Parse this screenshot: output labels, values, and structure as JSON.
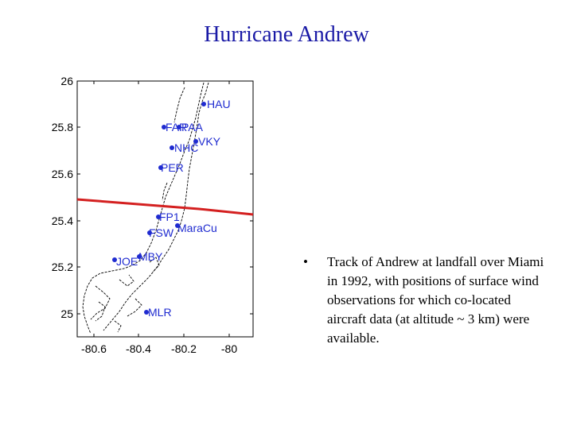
{
  "slide": {
    "title": "Hurricane Andrew",
    "bullet_symbol": "•",
    "bullet_text": "Track of Andrew at landfall over Miami in 1992, with positions of surface wind observations for which co-located aircraft data (at altitude ~ 3 km) were available."
  },
  "map": {
    "y_ticks": [
      "26",
      "25.8",
      "25.6",
      "25.4",
      "25.2",
      "25"
    ],
    "x_ticks": [
      "-80.6",
      "-80.4",
      "-80.2",
      "-80"
    ],
    "colors": {
      "track": "#d42020",
      "stations": "#1f2bd0",
      "coast": "#000000"
    },
    "stations": [
      {
        "label": "HAU",
        "lon": -80.11,
        "lat": 25.9
      },
      {
        "label": "FAR",
        "lon": -80.33,
        "lat": 25.8
      },
      {
        "label": "PAA",
        "lon": -80.25,
        "lat": 25.8
      },
      {
        "label": "VKY",
        "lon": -80.16,
        "lat": 25.74
      },
      {
        "label": "NHC",
        "lon": -80.28,
        "lat": 25.72
      },
      {
        "label": "PER",
        "lon": -80.34,
        "lat": 25.63
      },
      {
        "label": "FP1",
        "lon": -80.35,
        "lat": 25.43
      },
      {
        "label": "MaraCu",
        "lon": -80.23,
        "lat": 25.39
      },
      {
        "label": "FSW",
        "lon": -80.38,
        "lat": 25.35
      },
      {
        "label": "MBY",
        "lon": -80.41,
        "lat": 25.25
      },
      {
        "label": "JOE",
        "lon": -80.53,
        "lat": 25.23
      },
      {
        "label": "MLR",
        "lon": -80.4,
        "lat": 25.01
      }
    ]
  }
}
